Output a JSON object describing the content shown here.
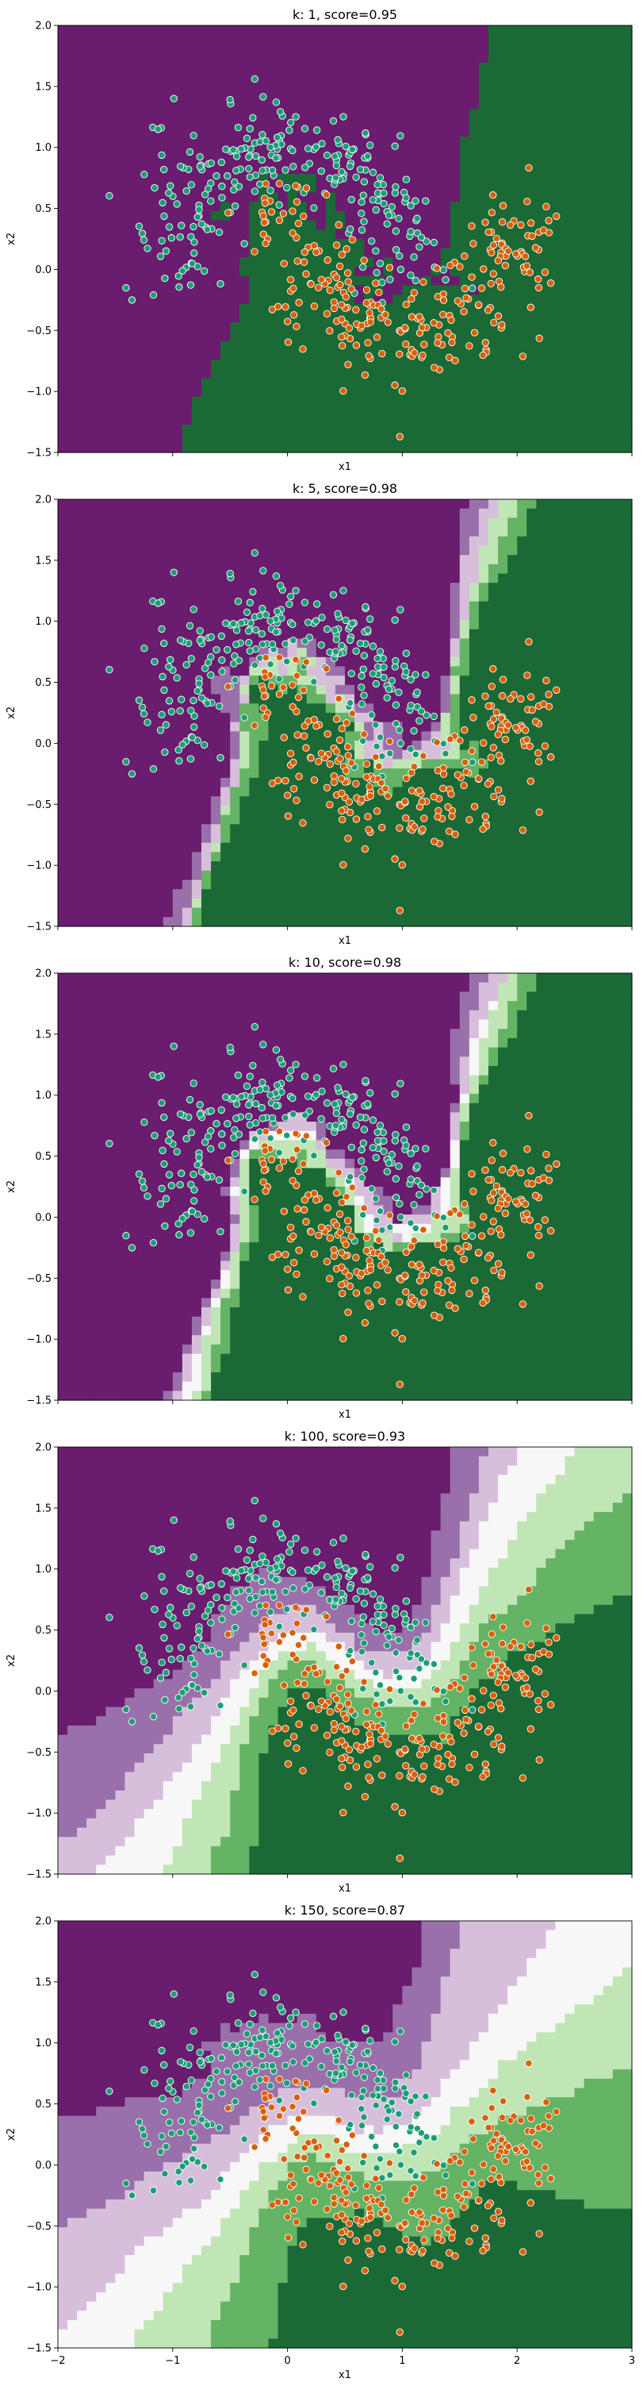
{
  "figure": {
    "shared_xlabel": "x1",
    "shared_ylabel": "x2",
    "x_ticks": [
      "−2",
      "−1",
      "0",
      "1",
      "2",
      "3"
    ],
    "y_ticks": [
      "−1.5",
      "−1.0",
      "−0.5",
      "0.0",
      "0.5",
      "1.0",
      "1.5",
      "2.0"
    ]
  },
  "colors": {
    "class0": "#1b9e77",
    "class1": "#d95f02",
    "purple_levels": [
      "#6a1c6e",
      "#9a70aa",
      "#d7bfdc"
    ],
    "white_level": "#f7f7f7",
    "green_levels": [
      "#c0e6b5",
      "#65b365",
      "#1b6a36"
    ]
  },
  "chart_data": [
    {
      "type": "scatter",
      "title": "k: 1, score=0.95",
      "xlabel": "x1",
      "ylabel": "x2",
      "xlim": [
        -2,
        3
      ],
      "ylim": [
        -1.5,
        2.0
      ],
      "background": "decision boundary, two-level (purple/green)",
      "series": [
        {
          "description": "two interleaving half-moons, class 0 upper arc, class 1 lower arc"
        }
      ]
    },
    {
      "type": "scatter",
      "title": "k: 5, score=0.98",
      "xlabel": "x1",
      "ylabel": "x2",
      "xlim": [
        -2,
        3
      ],
      "ylim": [
        -1.5,
        2.0
      ],
      "background": "decision boundary, narrow transition band"
    },
    {
      "type": "scatter",
      "title": "k: 10, score=0.98",
      "xlabel": "x1",
      "ylabel": "x2",
      "xlim": [
        -2,
        3
      ],
      "ylim": [
        -1.5,
        2.0
      ],
      "background": "decision boundary, slightly wider transition band"
    },
    {
      "type": "scatter",
      "title": "k: 100, score=0.93",
      "xlabel": "x1",
      "ylabel": "x2",
      "xlim": [
        -2,
        3
      ],
      "ylim": [
        -1.5,
        2.0
      ],
      "background": "decision boundary, smoothed wide bands"
    },
    {
      "type": "scatter",
      "title": "k: 150, score=0.87",
      "xlabel": "x1",
      "ylabel": "x2",
      "xlim": [
        -2,
        3
      ],
      "ylim": [
        -1.5,
        2.0
      ],
      "background": "decision boundary, near-linear diagonal bands"
    }
  ]
}
